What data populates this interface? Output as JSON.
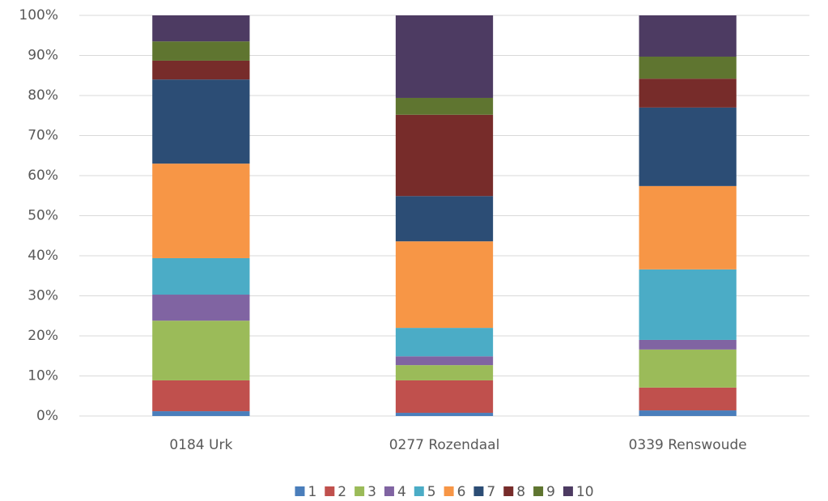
{
  "chart_data": {
    "type": "stacked_bar",
    "categories": [
      "0184 Urk",
      "0277 Rozendaal",
      "0339 Renswoude"
    ],
    "series": [
      {
        "name": "1",
        "color": "#4a7ebb",
        "values": [
          1.2,
          0.8,
          1.4
        ]
      },
      {
        "name": "2",
        "color": "#c0504d",
        "values": [
          7.7,
          8.1,
          5.7
        ]
      },
      {
        "name": "3",
        "color": "#9bbb59",
        "values": [
          14.9,
          3.8,
          9.5
        ]
      },
      {
        "name": "4",
        "color": "#8064a2",
        "values": [
          6.5,
          2.2,
          2.4
        ]
      },
      {
        "name": "5",
        "color": "#4bacc6",
        "values": [
          9.1,
          7.1,
          17.6
        ]
      },
      {
        "name": "6",
        "color": "#f79646",
        "values": [
          23.6,
          21.6,
          20.8
        ]
      },
      {
        "name": "7",
        "color": "#2c4d75",
        "values": [
          21.0,
          11.3,
          19.6
        ]
      },
      {
        "name": "8",
        "color": "#772c2a",
        "values": [
          4.7,
          20.3,
          7.2
        ]
      },
      {
        "name": "9",
        "color": "#5f7530",
        "values": [
          4.8,
          4.2,
          5.5
        ]
      },
      {
        "name": "10",
        "color": "#4d3b62",
        "values": [
          6.5,
          20.6,
          10.3
        ]
      }
    ],
    "ylim": [
      0,
      100
    ],
    "yticks": [
      {
        "value": 0,
        "label": "0%"
      },
      {
        "value": 10,
        "label": "10%"
      },
      {
        "value": 20,
        "label": "20%"
      },
      {
        "value": 30,
        "label": "30%"
      },
      {
        "value": 40,
        "label": "40%"
      },
      {
        "value": 50,
        "label": "50%"
      },
      {
        "value": 60,
        "label": "60%"
      },
      {
        "value": 70,
        "label": "70%"
      },
      {
        "value": 80,
        "label": "80%"
      },
      {
        "value": 90,
        "label": "90%"
      },
      {
        "value": 100,
        "label": "100%"
      }
    ],
    "grid": true,
    "legend": "bottom"
  }
}
